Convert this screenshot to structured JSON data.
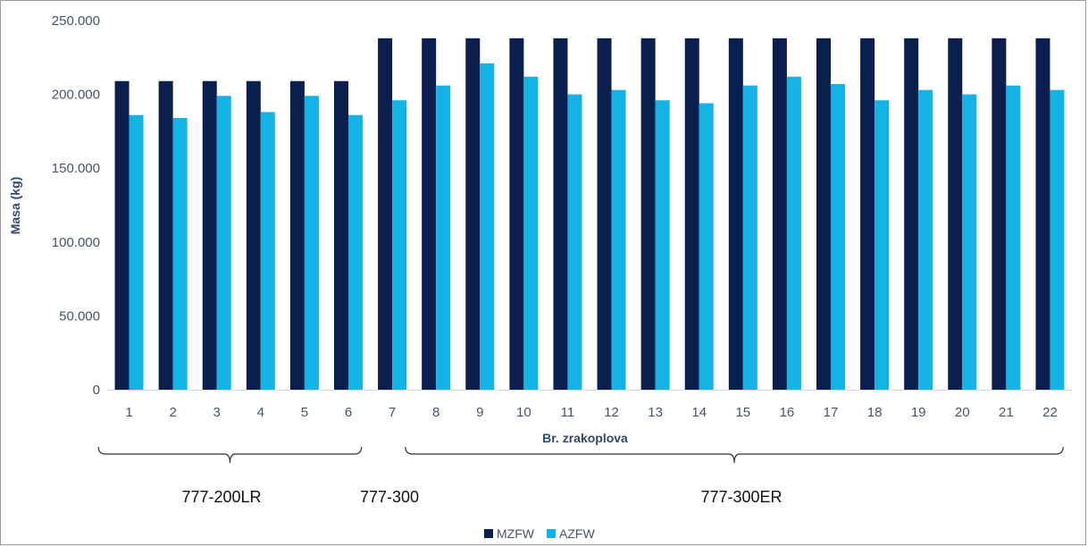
{
  "chart_data": {
    "type": "bar",
    "categories": [
      "1",
      "2",
      "3",
      "4",
      "5",
      "6",
      "7",
      "8",
      "9",
      "10",
      "11",
      "12",
      "13",
      "14",
      "15",
      "16",
      "17",
      "18",
      "19",
      "20",
      "21",
      "22"
    ],
    "series": [
      {
        "name": "MZFW",
        "color": "#0b1f4f",
        "values": [
          209000,
          209000,
          209000,
          209000,
          209000,
          209000,
          238000,
          238000,
          238000,
          238000,
          238000,
          238000,
          238000,
          238000,
          238000,
          238000,
          238000,
          238000,
          238000,
          238000,
          238000,
          238000
        ]
      },
      {
        "name": "AZFW",
        "color": "#13b3e6",
        "values": [
          186000,
          184000,
          199000,
          188000,
          199000,
          186000,
          196000,
          206000,
          221000,
          212000,
          200000,
          203000,
          196000,
          194000,
          206000,
          212000,
          207000,
          196000,
          203000,
          200000,
          206000,
          203000
        ]
      }
    ],
    "xlabel": "Br. zrakoplova",
    "ylabel": "Masa (kg)",
    "ylim": [
      0,
      250000
    ],
    "yticks": [
      "0",
      "50.000",
      "100.000",
      "150.000",
      "200.000",
      "250.000"
    ],
    "grid": false,
    "legend": "bottom",
    "groups": [
      {
        "label": "777-200LR",
        "from": 1,
        "to": 6
      },
      {
        "label": "777-300",
        "from": 7,
        "to": 7
      },
      {
        "label": "777-300ER",
        "from": 8,
        "to": 22
      }
    ]
  }
}
